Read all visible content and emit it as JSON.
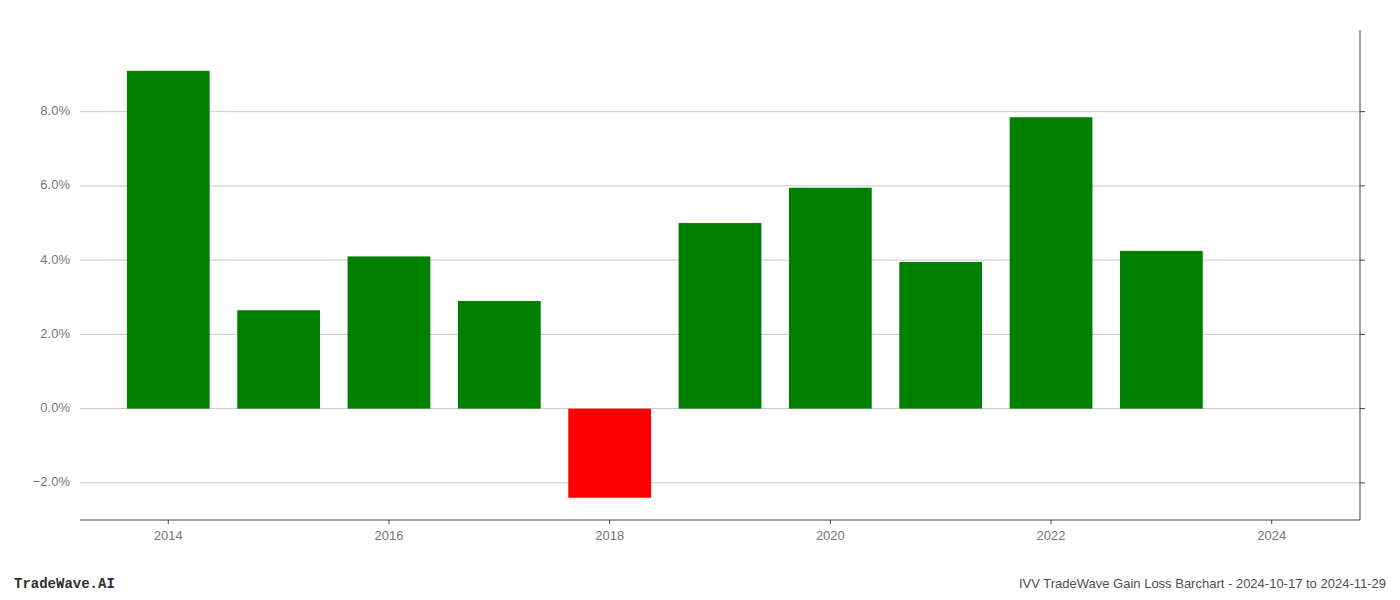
{
  "chart_data": {
    "type": "bar",
    "x": [
      2014,
      2015,
      2016,
      2017,
      2018,
      2019,
      2020,
      2021,
      2022,
      2023
    ],
    "values": [
      0.091,
      0.0265,
      0.041,
      0.029,
      -0.024,
      0.05,
      0.0595,
      0.0395,
      0.0785,
      0.0425
    ],
    "colors": [
      "#008000",
      "#008000",
      "#008000",
      "#008000",
      "#ff0000",
      "#008000",
      "#008000",
      "#008000",
      "#008000",
      "#008000"
    ],
    "xlim": [
      2013.2,
      2024.8
    ],
    "xticks": [
      2014,
      2016,
      2018,
      2020,
      2022,
      2024
    ],
    "ylim": [
      -0.03,
      0.102
    ],
    "yticks": [
      {
        "value": -0.02,
        "label": "−2.0%"
      },
      {
        "value": 0.0,
        "label": "0.0%"
      },
      {
        "value": 0.02,
        "label": "2.0%"
      },
      {
        "value": 0.04,
        "label": "4.0%"
      },
      {
        "value": 0.06,
        "label": "6.0%"
      },
      {
        "value": 0.08,
        "label": "8.0%"
      }
    ],
    "grid": true,
    "annotations": [
      "TradeWave.AI",
      "IVV TradeWave Gain Loss Barchart - 2024-10-17 to 2024-11-29"
    ]
  }
}
